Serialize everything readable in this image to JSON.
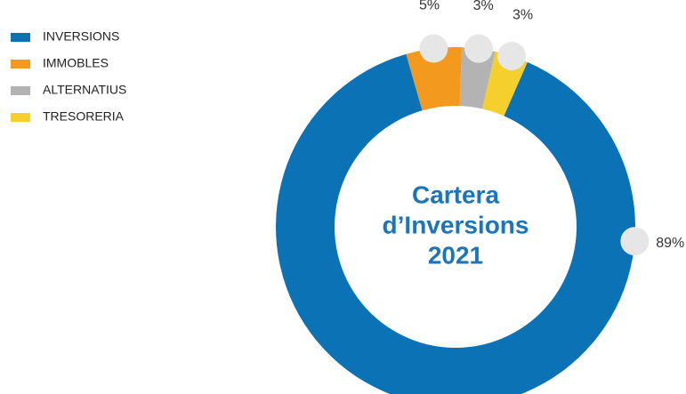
{
  "chart_data": {
    "type": "donut",
    "title": [
      "Cartera",
      "d’Inversions",
      "2021"
    ],
    "categories": [
      "INVERSIONS",
      "IMMOBLES",
      "ALTERNATIUS",
      "TRESORERIA"
    ],
    "values": [
      89,
      5,
      3,
      3
    ],
    "value_labels": [
      "89%",
      "5%",
      "3%",
      "3%"
    ],
    "colors": [
      "#0a72b5",
      "#f39a1e",
      "#b3b3b3",
      "#f5d02c"
    ],
    "legend": "top-left"
  }
}
